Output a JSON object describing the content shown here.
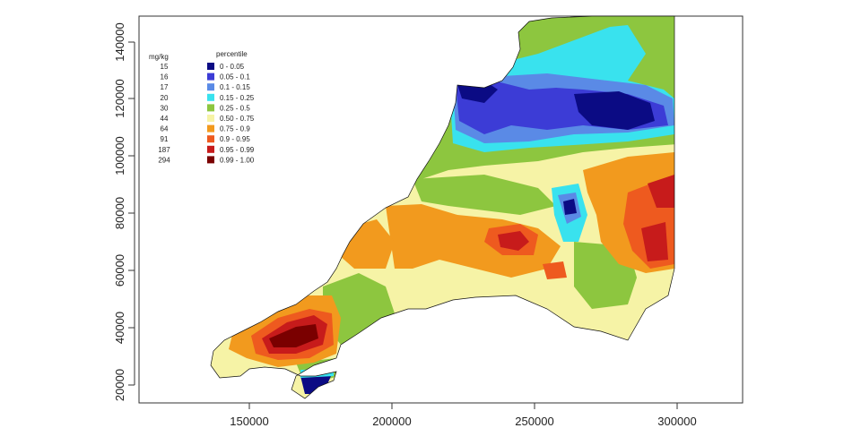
{
  "axes": {
    "x_ticks": [
      "150000",
      "200000",
      "250000",
      "300000"
    ],
    "y_ticks": [
      "20000",
      "40000",
      "60000",
      "80000",
      "100000",
      "120000",
      "140000"
    ]
  },
  "legend": {
    "value_header": "mg/kg",
    "percentile_header": "percentile",
    "entries": [
      {
        "value": "15",
        "range": "0 - 0.05",
        "color": "#0b0b84"
      },
      {
        "value": "16",
        "range": "0.05 - 0.1",
        "color": "#3c3cd6"
      },
      {
        "value": "17",
        "range": "0.1 - 0.15",
        "color": "#5a8ae6"
      },
      {
        "value": "20",
        "range": "0.15 - 0.25",
        "color": "#39e2ee"
      },
      {
        "value": "30",
        "range": "0.25 - 0.5",
        "color": "#8dc63f"
      },
      {
        "value": "44",
        "range": "0.50 - 0.75",
        "color": "#f6f3a6"
      },
      {
        "value": "64",
        "range": "0.75 - 0.9",
        "color": "#f29a1e"
      },
      {
        "value": "91",
        "range": "0.9 - 0.95",
        "color": "#ee5a1f"
      },
      {
        "value": "187",
        "range": "0.95 - 0.99",
        "color": "#c71b1b"
      },
      {
        "value": "294",
        "range": "0.99 - 1.00",
        "color": "#7a0000"
      }
    ]
  }
}
